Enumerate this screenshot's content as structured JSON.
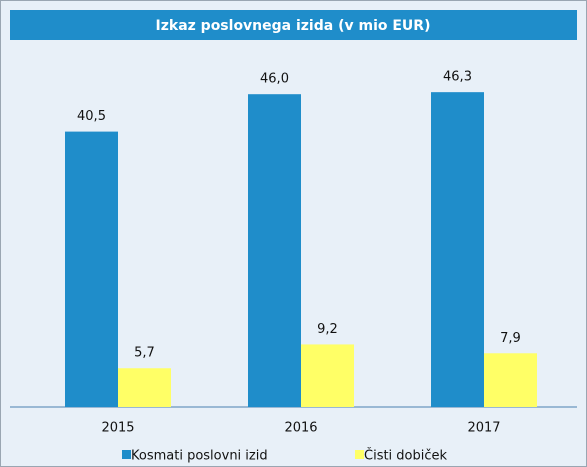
{
  "chart_data": {
    "type": "bar",
    "title": "Izkaz poslovnega izida (v mio EUR)",
    "categories": [
      "2015",
      "2016",
      "2017"
    ],
    "series": [
      {
        "name": "Kosmati poslovni izid",
        "color": "#1f8dca",
        "values": [
          40.5,
          46.0,
          46.3
        ],
        "value_labels": [
          "40,5",
          "46,0",
          "46,3"
        ]
      },
      {
        "name": "Čisti dobiček",
        "color": "#ffff66",
        "values": [
          5.7,
          9.2,
          7.9
        ],
        "value_labels": [
          "5,7",
          "9,2",
          "7,9"
        ]
      }
    ],
    "ylim": [
      0,
      50
    ],
    "legend": "bottom"
  }
}
